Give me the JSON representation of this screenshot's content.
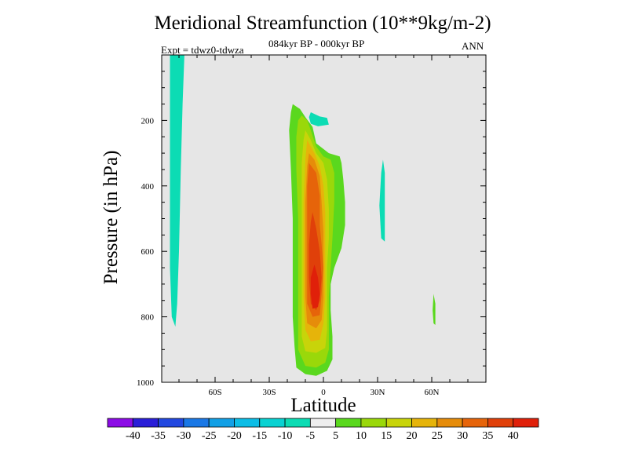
{
  "chart_data": {
    "type": "contour",
    "title": "Meridional Streamfunction (10**9kg/m-2)",
    "subtitle": "084kyr BP - 000kyr BP",
    "left_label": "Expt = tdwz0-tdwza",
    "right_label": "ANN",
    "xlabel": "Latitude",
    "ylabel": "Pressure (in hPa)",
    "xlim": [
      -90,
      90
    ],
    "ylim": [
      1000,
      0
    ],
    "x_ticks": [
      {
        "value": -60,
        "label": "60S"
      },
      {
        "value": -30,
        "label": "30S"
      },
      {
        "value": 0,
        "label": "0"
      },
      {
        "value": 30,
        "label": "30N"
      },
      {
        "value": 60,
        "label": "60N"
      }
    ],
    "y_ticks": [
      {
        "value": 200,
        "label": "200"
      },
      {
        "value": 400,
        "label": "400"
      },
      {
        "value": 600,
        "label": "600"
      },
      {
        "value": 800,
        "label": "800"
      },
      {
        "value": 1000,
        "label": "1000"
      }
    ],
    "background_color": "#e6e6e6",
    "colorbar": {
      "levels": [
        "-40",
        "-35",
        "-30",
        "-25",
        "-20",
        "-15",
        "-10",
        "-5",
        "5",
        "10",
        "15",
        "20",
        "25",
        "30",
        "35",
        "40"
      ],
      "colors": [
        "#8c0ce6",
        "#2a1ed8",
        "#2248e0",
        "#1a78e6",
        "#12a0e6",
        "#0cbde6",
        "#0ad2d2",
        "#0cdcb4",
        "#eeeeee",
        "#5ad81e",
        "#9ad80a",
        "#c8d40a",
        "#e6b40a",
        "#e68c0a",
        "#e6640a",
        "#e0400a",
        "#e0200a"
      ]
    },
    "contours": [
      {
        "level": "-10",
        "color": "#0cdcb4",
        "points": [
          [
            -85,
            0
          ],
          [
            -77,
            0
          ],
          [
            -78,
            150
          ],
          [
            -79,
            350
          ],
          [
            -80,
            600
          ],
          [
            -81,
            760
          ],
          [
            -82,
            830
          ],
          [
            -84,
            800
          ],
          [
            -85,
            650
          ],
          [
            -85,
            0
          ]
        ]
      },
      {
        "level": "-10",
        "color": "#0cdcb4",
        "points": [
          [
            -7,
            175
          ],
          [
            -2,
            188
          ],
          [
            2,
            192
          ],
          [
            3,
            213
          ],
          [
            -3,
            218
          ],
          [
            -7,
            210
          ],
          [
            -8,
            190
          ],
          [
            -7,
            175
          ]
        ]
      },
      {
        "level": "-10",
        "color": "#0cdcb4",
        "points": [
          [
            33,
            320
          ],
          [
            34,
            360
          ],
          [
            34,
            480
          ],
          [
            34,
            570
          ],
          [
            32,
            560
          ],
          [
            31,
            460
          ],
          [
            32,
            360
          ],
          [
            33,
            320
          ]
        ]
      },
      {
        "level": "5",
        "color": "#5ad81e",
        "points": [
          [
            61,
            730
          ],
          [
            62,
            760
          ],
          [
            62,
            825
          ],
          [
            61,
            820
          ],
          [
            60.5,
            780
          ],
          [
            61,
            730
          ]
        ]
      },
      {
        "level": "5",
        "color": "#5ad81e",
        "points": [
          [
            -17,
            150
          ],
          [
            -13,
            165
          ],
          [
            -10,
            190
          ],
          [
            -6,
            220
          ],
          [
            -4,
            270
          ],
          [
            3,
            300
          ],
          [
            9,
            310
          ],
          [
            10,
            330
          ],
          [
            11,
            380
          ],
          [
            12,
            450
          ],
          [
            12,
            520
          ],
          [
            10,
            590
          ],
          [
            6,
            650
          ],
          [
            4,
            700
          ],
          [
            4,
            780
          ],
          [
            5,
            860
          ],
          [
            5,
            930
          ],
          [
            2,
            965
          ],
          [
            -4,
            980
          ],
          [
            -10,
            975
          ],
          [
            -15,
            955
          ],
          [
            -16,
            890
          ],
          [
            -17,
            800
          ],
          [
            -17,
            650
          ],
          [
            -17,
            500
          ],
          [
            -18,
            350
          ],
          [
            -19,
            230
          ],
          [
            -18,
            175
          ],
          [
            -17,
            150
          ]
        ]
      },
      {
        "level": "10",
        "color": "#9ad80a",
        "points": [
          [
            -12,
            185
          ],
          [
            -9,
            200
          ],
          [
            -7,
            230
          ],
          [
            -4,
            280
          ],
          [
            0,
            310
          ],
          [
            4,
            320
          ],
          [
            6,
            360
          ],
          [
            6,
            450
          ],
          [
            5,
            560
          ],
          [
            4,
            650
          ],
          [
            3,
            740
          ],
          [
            3,
            830
          ],
          [
            3,
            900
          ],
          [
            1,
            940
          ],
          [
            -4,
            955
          ],
          [
            -10,
            950
          ],
          [
            -14,
            900
          ],
          [
            -14,
            800
          ],
          [
            -14,
            650
          ],
          [
            -14,
            500
          ],
          [
            -15,
            350
          ],
          [
            -15,
            250
          ],
          [
            -14,
            200
          ],
          [
            -12,
            185
          ]
        ]
      },
      {
        "level": "15",
        "color": "#c8d40a",
        "points": [
          [
            -10,
            230
          ],
          [
            -7,
            260
          ],
          [
            -4,
            300
          ],
          [
            0,
            330
          ],
          [
            2,
            380
          ],
          [
            3,
            470
          ],
          [
            3,
            560
          ],
          [
            2,
            650
          ],
          [
            2,
            750
          ],
          [
            2,
            840
          ],
          [
            1,
            895
          ],
          [
            -4,
            910
          ],
          [
            -10,
            905
          ],
          [
            -12,
            860
          ],
          [
            -12,
            760
          ],
          [
            -12,
            600
          ],
          [
            -12,
            450
          ],
          [
            -12,
            330
          ],
          [
            -11,
            260
          ],
          [
            -10,
            230
          ]
        ]
      },
      {
        "level": "20",
        "color": "#e6b40a",
        "points": [
          [
            -9,
            260
          ],
          [
            -5,
            300
          ],
          [
            -2,
            340
          ],
          [
            0,
            400
          ],
          [
            1,
            480
          ],
          [
            1,
            560
          ],
          [
            1,
            650
          ],
          [
            1,
            740
          ],
          [
            0,
            820
          ],
          [
            -2,
            870
          ],
          [
            -7,
            875
          ],
          [
            -10,
            840
          ],
          [
            -11,
            740
          ],
          [
            -11,
            600
          ],
          [
            -11,
            450
          ],
          [
            -10,
            320
          ],
          [
            -9,
            260
          ]
        ]
      },
      {
        "level": "25",
        "color": "#e68c0a",
        "points": [
          [
            -8,
            300
          ],
          [
            -5,
            320
          ],
          [
            -2,
            370
          ],
          [
            -1,
            450
          ],
          [
            0,
            540
          ],
          [
            0,
            640
          ],
          [
            0,
            740
          ],
          [
            -1,
            810
          ],
          [
            -4,
            835
          ],
          [
            -9,
            820
          ],
          [
            -10,
            740
          ],
          [
            -10,
            600
          ],
          [
            -10,
            450
          ],
          [
            -9,
            340
          ],
          [
            -8,
            300
          ]
        ]
      },
      {
        "level": "30",
        "color": "#e6640a",
        "points": [
          [
            -8,
            330
          ],
          [
            -4,
            360
          ],
          [
            -2,
            430
          ],
          [
            -2,
            520
          ],
          [
            -1,
            580
          ],
          [
            0,
            650
          ],
          [
            -1,
            730
          ],
          [
            -2,
            795
          ],
          [
            -6,
            800
          ],
          [
            -9,
            760
          ],
          [
            -9,
            650
          ],
          [
            -9,
            520
          ],
          [
            -9,
            400
          ],
          [
            -8,
            330
          ]
        ]
      },
      {
        "level": "35",
        "color": "#e0400a",
        "points": [
          [
            -6,
            480
          ],
          [
            -4,
            530
          ],
          [
            -2,
            600
          ],
          [
            -1,
            680
          ],
          [
            -2,
            750
          ],
          [
            -4,
            780
          ],
          [
            -7,
            760
          ],
          [
            -8,
            680
          ],
          [
            -8,
            580
          ],
          [
            -7,
            510
          ],
          [
            -6,
            480
          ]
        ]
      },
      {
        "level": "40",
        "color": "#e0200a",
        "points": [
          [
            -5,
            640
          ],
          [
            -3,
            680
          ],
          [
            -2,
            730
          ],
          [
            -3,
            770
          ],
          [
            -6,
            775
          ],
          [
            -7,
            730
          ],
          [
            -7,
            680
          ],
          [
            -5,
            640
          ]
        ]
      }
    ]
  }
}
